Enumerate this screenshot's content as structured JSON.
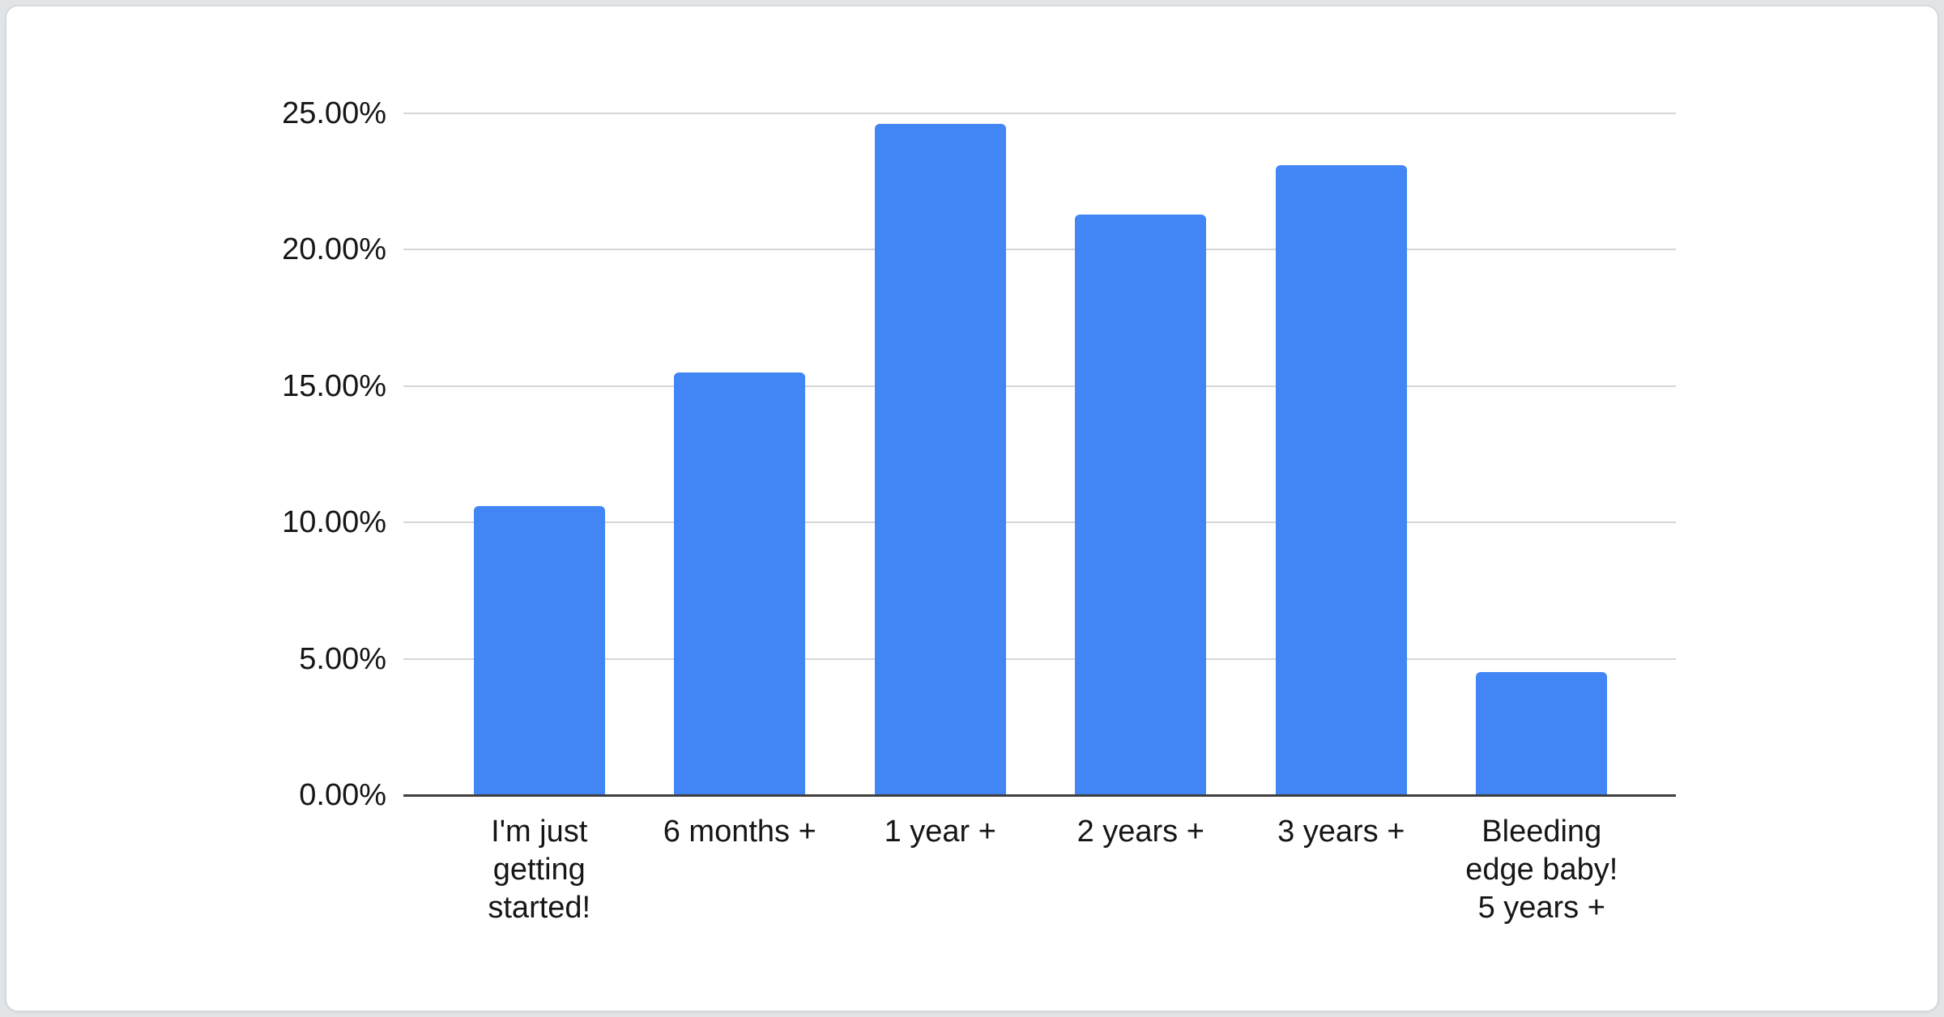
{
  "page": {
    "background_color": "#e2e5e8",
    "card_background_color": "#ffffff",
    "card_border_color": "#d6dade"
  },
  "chart_data": {
    "type": "bar",
    "title": "",
    "xlabel": "",
    "ylabel": "",
    "legend": "none",
    "grid": true,
    "categories": [
      "I'm just getting started!",
      "6 months +",
      "1 year +",
      "2 years +",
      "3 years +",
      "Bleeding edge baby! 5 years +"
    ],
    "categories_wrapped": [
      "I'm just\ngetting\nstarted!",
      "6 months +",
      "1 year +",
      "2 years +",
      "3 years +",
      "Bleeding\nedge baby!\n5 years +"
    ],
    "values": [
      10.6,
      15.5,
      24.6,
      21.3,
      23.1,
      4.5
    ],
    "value_unit": "percent",
    "ylim": [
      0,
      25
    ],
    "y_tick_labels": [
      "0.00%",
      "5.00%",
      "10.00%",
      "15.00%",
      "20.00%",
      "25.00%"
    ],
    "y_tick_values": [
      0,
      5,
      10,
      15,
      20,
      25
    ],
    "bar_color": "#4285f4",
    "gridline_color": "#d6d6d6",
    "baseline_color": "#3f3f3f",
    "label_color": "#161616"
  }
}
